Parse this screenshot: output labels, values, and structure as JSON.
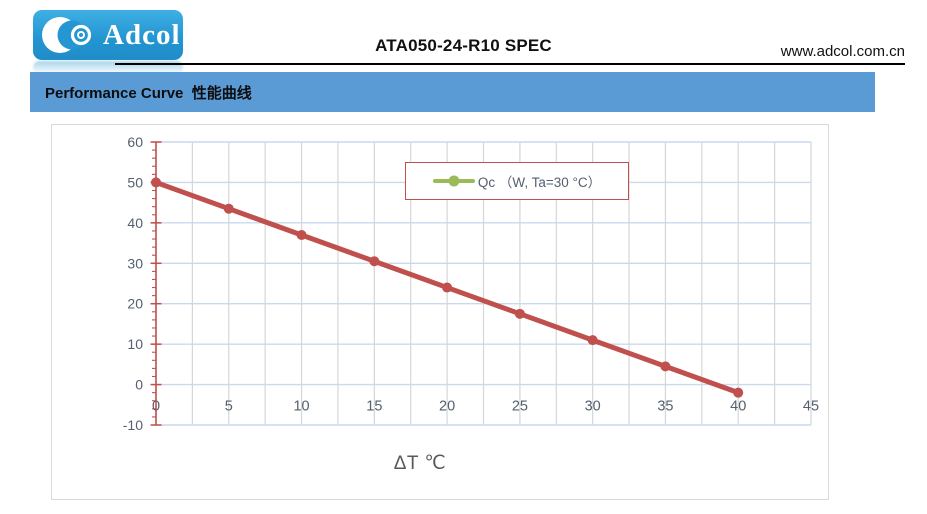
{
  "header": {
    "logo_text": "Adcol",
    "doc_title": "ATA050-24-R10 SPEC",
    "website": "www.adcol.com.cn"
  },
  "section": {
    "heading": "Performance Curve  性能曲线"
  },
  "chart_data": {
    "type": "line",
    "title": "",
    "x": [
      0,
      5,
      10,
      15,
      20,
      25,
      30,
      35,
      40
    ],
    "series": [
      {
        "name": "Qc （W, Ta=30 °C）",
        "values": [
          50,
          43.5,
          37,
          30.5,
          24,
          17.5,
          11,
          4.5,
          -2
        ]
      }
    ],
    "xlabel": "ΔT ℃",
    "ylabel": "",
    "xlim": [
      0,
      45
    ],
    "ylim": [
      -10,
      60
    ],
    "xticks": [
      0,
      5,
      10,
      15,
      20,
      25,
      30,
      35,
      40,
      45
    ],
    "yticks": [
      -10,
      0,
      10,
      20,
      30,
      40,
      50,
      60
    ],
    "x_minor_step": 2.5,
    "y_minor_step": 2,
    "grid": true,
    "legend": {
      "position": "top-center",
      "label": "Qc （W, Ta=30 °C）",
      "symbol_color": "#9bbb59",
      "border_color": "#c0504d"
    },
    "colors": {
      "line": "#c0504d",
      "marker": "#c0504d",
      "hgrid": "#c9d9ef",
      "vgrid": "#d6d6d6",
      "axis": "#c0504d",
      "tick_label": "#54606f"
    }
  }
}
